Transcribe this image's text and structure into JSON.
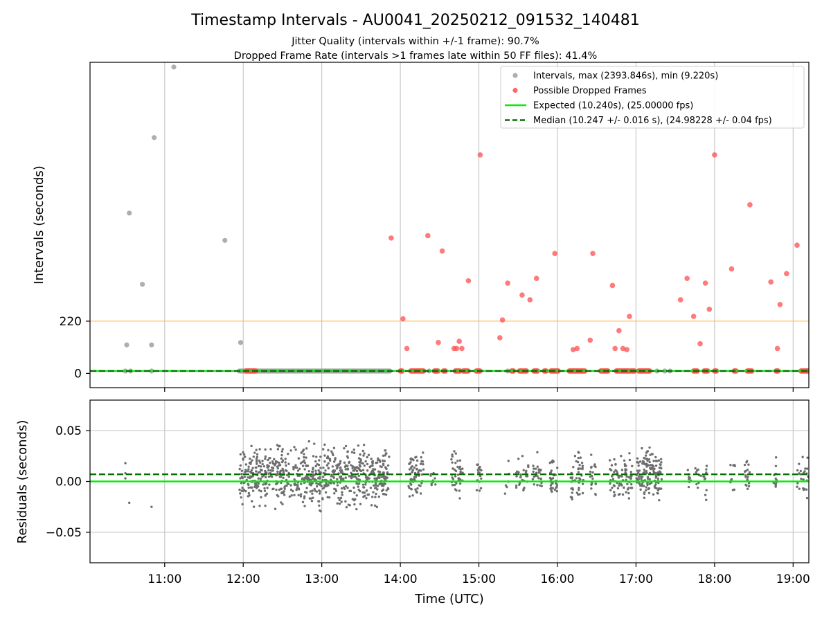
{
  "title": "Timestamp Intervals - AU0041_20250212_091532_140481",
  "subtitle_1": "Jitter Quality (intervals within +/-1 frame): 90.7%",
  "subtitle_2": "Dropped Frame Rate (intervals >1 frames late within 50 FF files): 41.4%",
  "colors": {
    "interval_points": "#a0a0a0",
    "dropped_points": "#ff4d4d",
    "expected_line": "#00ee00",
    "median_line": "#007000",
    "threshold_line": "#ffc04d",
    "residual_points": "#6e6e6e",
    "grid": "#c8c8c8"
  },
  "chart_data": [
    {
      "type": "scatter",
      "ylabel": "Intervals (seconds)",
      "xlim": [
        "10:03",
        "19:12"
      ],
      "ylim": [
        -60,
        1310
      ],
      "y_ticks": [
        {
          "value": 0,
          "label": "0"
        },
        {
          "value": 220,
          "label": "220"
        }
      ],
      "x_ticks": [
        "11:00",
        "12:00",
        "13:00",
        "14:00",
        "15:00",
        "16:00",
        "17:00",
        "18:00",
        "19:00"
      ],
      "grid": "vertical",
      "legend_position": "top-right",
      "legend": [
        {
          "label": "Intervals, max (2393.846s), min (9.220s)",
          "kind": "dot",
          "color": "#a0a0a0"
        },
        {
          "label": "Possible Dropped Frames",
          "kind": "dot",
          "color": "#ff4d4d"
        },
        {
          "label": "Expected (10.240s), (25.00000 fps)",
          "kind": "solid",
          "color": "#00ee00"
        },
        {
          "label": "Median (10.247 +/- 0.016 s), (24.98228 +/- 0.04 fps)",
          "kind": "dashed",
          "color": "#007000"
        }
      ],
      "reference_lines": [
        {
          "name": "threshold",
          "y": 220
        },
        {
          "name": "expected",
          "y": 10.24
        },
        {
          "name": "median",
          "y": 10.247
        }
      ],
      "series": [
        {
          "name": "Intervals",
          "points": [
            [
              "10:30",
              10
            ],
            [
              "10:31",
              120
            ],
            [
              "10:33",
              675
            ],
            [
              "10:34",
              10
            ],
            [
              "10:43",
              375
            ],
            [
              "10:50",
              10
            ],
            [
              "10:50",
              120
            ],
            [
              "10:52",
              993
            ],
            [
              "11:07",
              1290
            ],
            [
              "11:46",
              560
            ],
            [
              "11:57",
              10
            ],
            [
              "11:58",
              130
            ],
            [
              "13:52",
              10
            ],
            [
              "14:22",
              10
            ],
            [
              "14:52",
              10
            ],
            [
              "15:22",
              10
            ],
            [
              "15:25",
              10
            ],
            [
              "16:52",
              10
            ],
            [
              "17:16",
              10
            ],
            [
              "17:22",
              10
            ],
            [
              "17:26",
              10
            ]
          ],
          "dense_band": {
            "from": "11:58",
            "to": "13:52",
            "y": 10
          }
        },
        {
          "name": "Possible Dropped Frames",
          "points": [
            [
              "13:53",
              570
            ],
            [
              "14:02",
              230
            ],
            [
              "14:05",
              105
            ],
            [
              "14:21",
              580
            ],
            [
              "14:29",
              130
            ],
            [
              "14:32",
              515
            ],
            [
              "14:41",
              105
            ],
            [
              "14:43",
              105
            ],
            [
              "14:45",
              135
            ],
            [
              "14:47",
              105
            ],
            [
              "14:52",
              390
            ],
            [
              "15:01",
              920
            ],
            [
              "15:16",
              150
            ],
            [
              "15:18",
              225
            ],
            [
              "15:22",
              380
            ],
            [
              "15:33",
              330
            ],
            [
              "15:39",
              310
            ],
            [
              "15:44",
              400
            ],
            [
              "15:58",
              505
            ],
            [
              "16:12",
              100
            ],
            [
              "16:15",
              105
            ],
            [
              "16:25",
              140
            ],
            [
              "16:27",
              505
            ],
            [
              "16:42",
              370
            ],
            [
              "16:44",
              105
            ],
            [
              "16:47",
              180
            ],
            [
              "16:50",
              105
            ],
            [
              "16:53",
              100
            ],
            [
              "16:55",
              240
            ],
            [
              "17:34",
              310
            ],
            [
              "17:39",
              400
            ],
            [
              "17:44",
              240
            ],
            [
              "17:49",
              125
            ],
            [
              "17:53",
              380
            ],
            [
              "17:56",
              270
            ],
            [
              "18:00",
              920
            ],
            [
              "18:13",
              440
            ],
            [
              "18:27",
              710
            ],
            [
              "18:43",
              385
            ],
            [
              "18:48",
              105
            ],
            [
              "18:50",
              290
            ],
            [
              "18:55",
              420
            ],
            [
              "19:03",
              540
            ]
          ],
          "baseline_clusters": [
            [
              "12:02",
              "12:10"
            ],
            [
              "14:00",
              "14:02"
            ],
            [
              "14:08",
              "14:18"
            ],
            [
              "14:26",
              "14:29"
            ],
            [
              "14:33",
              "14:35"
            ],
            [
              "14:42",
              "14:46"
            ],
            [
              "14:48",
              "14:52"
            ],
            [
              "14:58",
              "15:01"
            ],
            [
              "15:25",
              "15:27"
            ],
            [
              "15:31",
              "15:34"
            ],
            [
              "15:35",
              "15:37"
            ],
            [
              "15:42",
              "15:45"
            ],
            [
              "15:50",
              "15:52"
            ],
            [
              "15:55",
              "16:01"
            ],
            [
              "16:09",
              "16:21"
            ],
            [
              "16:33",
              "16:39"
            ],
            [
              "16:45",
              "16:55"
            ],
            [
              "16:56",
              "16:59"
            ],
            [
              "17:02",
              "17:11"
            ],
            [
              "17:44",
              "17:47"
            ],
            [
              "17:52",
              "17:55"
            ],
            [
              "18:00",
              "18:02"
            ],
            [
              "18:15",
              "18:17"
            ],
            [
              "18:25",
              "18:29"
            ],
            [
              "18:47",
              "18:49"
            ],
            [
              "19:06",
              "19:12"
            ]
          ]
        }
      ]
    },
    {
      "type": "scatter",
      "xlabel": "Time (UTC)",
      "ylabel": "Residuals (seconds)",
      "xlim": [
        "10:03",
        "19:12"
      ],
      "ylim": [
        -0.08,
        0.08
      ],
      "y_ticks": [
        {
          "value": -0.05,
          "label": "−0.05"
        },
        {
          "value": 0,
          "label": "0.00"
        },
        {
          "value": 0.05,
          "label": "0.05"
        }
      ],
      "x_ticks": [
        "11:00",
        "12:00",
        "13:00",
        "14:00",
        "15:00",
        "16:00",
        "17:00",
        "18:00",
        "19:00"
      ],
      "grid": "both",
      "reference_lines": [
        {
          "name": "expected",
          "y": 0.0
        },
        {
          "name": "median",
          "y": 0.007
        }
      ],
      "series": [
        {
          "name": "Residuals",
          "points": [
            [
              "10:30",
              0.018
            ],
            [
              "10:30",
              0.008
            ],
            [
              "10:30",
              0.003
            ],
            [
              "10:33",
              -0.021
            ],
            [
              "10:50",
              -0.025
            ]
          ],
          "clusters": [
            {
              "from": "11:57",
              "to": "13:52",
              "count": 720,
              "y_min": -0.042,
              "y_max": 0.048,
              "center": 0.005
            },
            {
              "from": "14:06",
              "to": "14:18",
              "count": 70,
              "y_min": -0.03,
              "y_max": 0.045,
              "center": 0.006
            },
            {
              "from": "14:23",
              "to": "14:27",
              "count": 10,
              "y_min": -0.02,
              "y_max": 0.03,
              "center": 0.005
            },
            {
              "from": "14:39",
              "to": "14:48",
              "count": 40,
              "y_min": -0.025,
              "y_max": 0.045,
              "center": 0.006
            },
            {
              "from": "14:58",
              "to": "15:02",
              "count": 18,
              "y_min": -0.02,
              "y_max": 0.035,
              "center": 0.005
            },
            {
              "from": "15:20",
              "to": "15:23",
              "count": 6,
              "y_min": -0.015,
              "y_max": 0.04,
              "center": 0.005
            },
            {
              "from": "15:28",
              "to": "15:38",
              "count": 30,
              "y_min": -0.025,
              "y_max": 0.025,
              "center": 0.004
            },
            {
              "from": "15:41",
              "to": "15:48",
              "count": 25,
              "y_min": -0.028,
              "y_max": 0.035,
              "center": 0.005
            },
            {
              "from": "15:54",
              "to": "16:00",
              "count": 35,
              "y_min": -0.03,
              "y_max": 0.04,
              "center": 0.005
            },
            {
              "from": "16:10",
              "to": "16:20",
              "count": 50,
              "y_min": -0.025,
              "y_max": 0.042,
              "center": 0.005
            },
            {
              "from": "16:25",
              "to": "16:30",
              "count": 20,
              "y_min": -0.02,
              "y_max": 0.04,
              "center": 0.005
            },
            {
              "from": "16:40",
              "to": "16:57",
              "count": 80,
              "y_min": -0.03,
              "y_max": 0.048,
              "center": 0.006
            },
            {
              "from": "17:00",
              "to": "17:20",
              "count": 140,
              "y_min": -0.035,
              "y_max": 0.048,
              "center": 0.007
            },
            {
              "from": "17:38",
              "to": "17:42",
              "count": 8,
              "y_min": -0.015,
              "y_max": 0.04,
              "center": 0.005
            },
            {
              "from": "17:45",
              "to": "17:55",
              "count": 20,
              "y_min": -0.022,
              "y_max": 0.04,
              "center": 0.005
            },
            {
              "from": "18:12",
              "to": "18:16",
              "count": 10,
              "y_min": -0.018,
              "y_max": 0.036,
              "center": 0.005
            },
            {
              "from": "18:23",
              "to": "18:27",
              "count": 18,
              "y_min": -0.015,
              "y_max": 0.038,
              "center": 0.005
            },
            {
              "from": "18:45",
              "to": "18:48",
              "count": 12,
              "y_min": -0.018,
              "y_max": 0.04,
              "center": 0.005
            },
            {
              "from": "19:03",
              "to": "19:12",
              "count": 25,
              "y_min": -0.024,
              "y_max": 0.024,
              "center": 0.005
            }
          ]
        }
      ]
    }
  ]
}
